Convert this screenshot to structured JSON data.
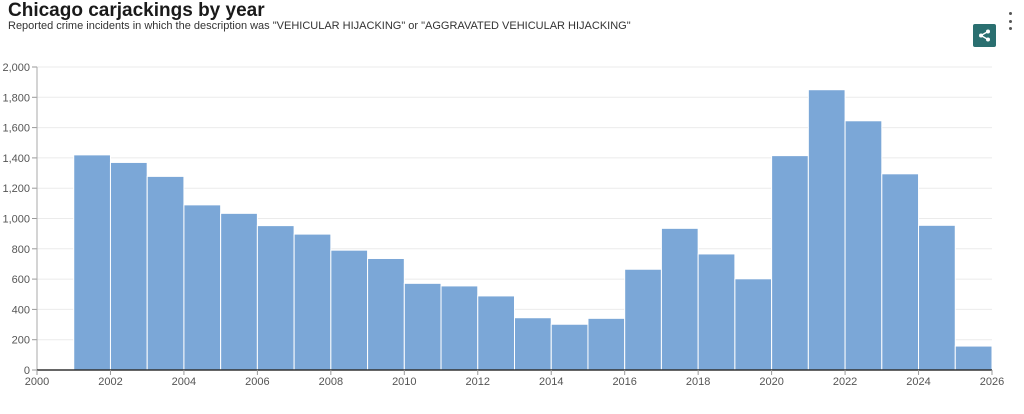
{
  "header": {
    "title": "Chicago carjackings by year",
    "subtitle": "Reported crime incidents in which the description was \"VEHICULAR HIJACKING\" or \"AGGRAVATED VEHICULAR HIJACKING\"",
    "share_icon": "share-icon",
    "menu_icon": "more-vertical-icon"
  },
  "colors": {
    "bar": "#7ba7d7",
    "bar_stroke": "#ffffff",
    "grid": "#ebebeb",
    "axis": "#555555",
    "share_bg": "#2a6f70"
  },
  "chart_data": {
    "type": "bar",
    "title": "Chicago carjackings by year",
    "subtitle": "Reported crime incidents in which the description was \"VEHICULAR HIJACKING\" or \"AGGRAVATED VEHICULAR HIJACKING\"",
    "xlabel": "",
    "ylabel": "",
    "categories": [
      2001,
      2002,
      2003,
      2004,
      2005,
      2006,
      2007,
      2008,
      2009,
      2010,
      2011,
      2012,
      2013,
      2014,
      2015,
      2016,
      2017,
      2018,
      2019,
      2020,
      2021,
      2022,
      2023,
      2024,
      2025
    ],
    "values": [
      1420,
      1370,
      1278,
      1090,
      1034,
      953,
      897,
      791,
      736,
      572,
      555,
      489,
      345,
      302,
      341,
      665,
      935,
      766,
      602,
      1415,
      1850,
      1645,
      1295,
      955,
      158
    ],
    "xlim": [
      2000,
      2026
    ],
    "ylim": [
      0,
      2000
    ],
    "x_ticks": [
      {
        "value": 2000,
        "label": "2000"
      },
      {
        "value": 2002,
        "label": "2002"
      },
      {
        "value": 2004,
        "label": "2004"
      },
      {
        "value": 2006,
        "label": "2006"
      },
      {
        "value": 2008,
        "label": "2008"
      },
      {
        "value": 2010,
        "label": "2010"
      },
      {
        "value": 2012,
        "label": "2012"
      },
      {
        "value": 2014,
        "label": "2014"
      },
      {
        "value": 2016,
        "label": "2016"
      },
      {
        "value": 2018,
        "label": "2018"
      },
      {
        "value": 2020,
        "label": "2020"
      },
      {
        "value": 2022,
        "label": "2022"
      },
      {
        "value": 2024,
        "label": "2024"
      },
      {
        "value": 2026,
        "label": "2026"
      }
    ],
    "y_ticks": [
      {
        "value": 0,
        "label": "0"
      },
      {
        "value": 200,
        "label": "200"
      },
      {
        "value": 400,
        "label": "400"
      },
      {
        "value": 600,
        "label": "600"
      },
      {
        "value": 800,
        "label": "800"
      },
      {
        "value": 1000,
        "label": "1,000"
      },
      {
        "value": 1200,
        "label": "1,200"
      },
      {
        "value": 1400,
        "label": "1,400"
      },
      {
        "value": 1600,
        "label": "1,600"
      },
      {
        "value": 1800,
        "label": "1,800"
      },
      {
        "value": 2000,
        "label": "2,000"
      }
    ],
    "grid": true
  }
}
